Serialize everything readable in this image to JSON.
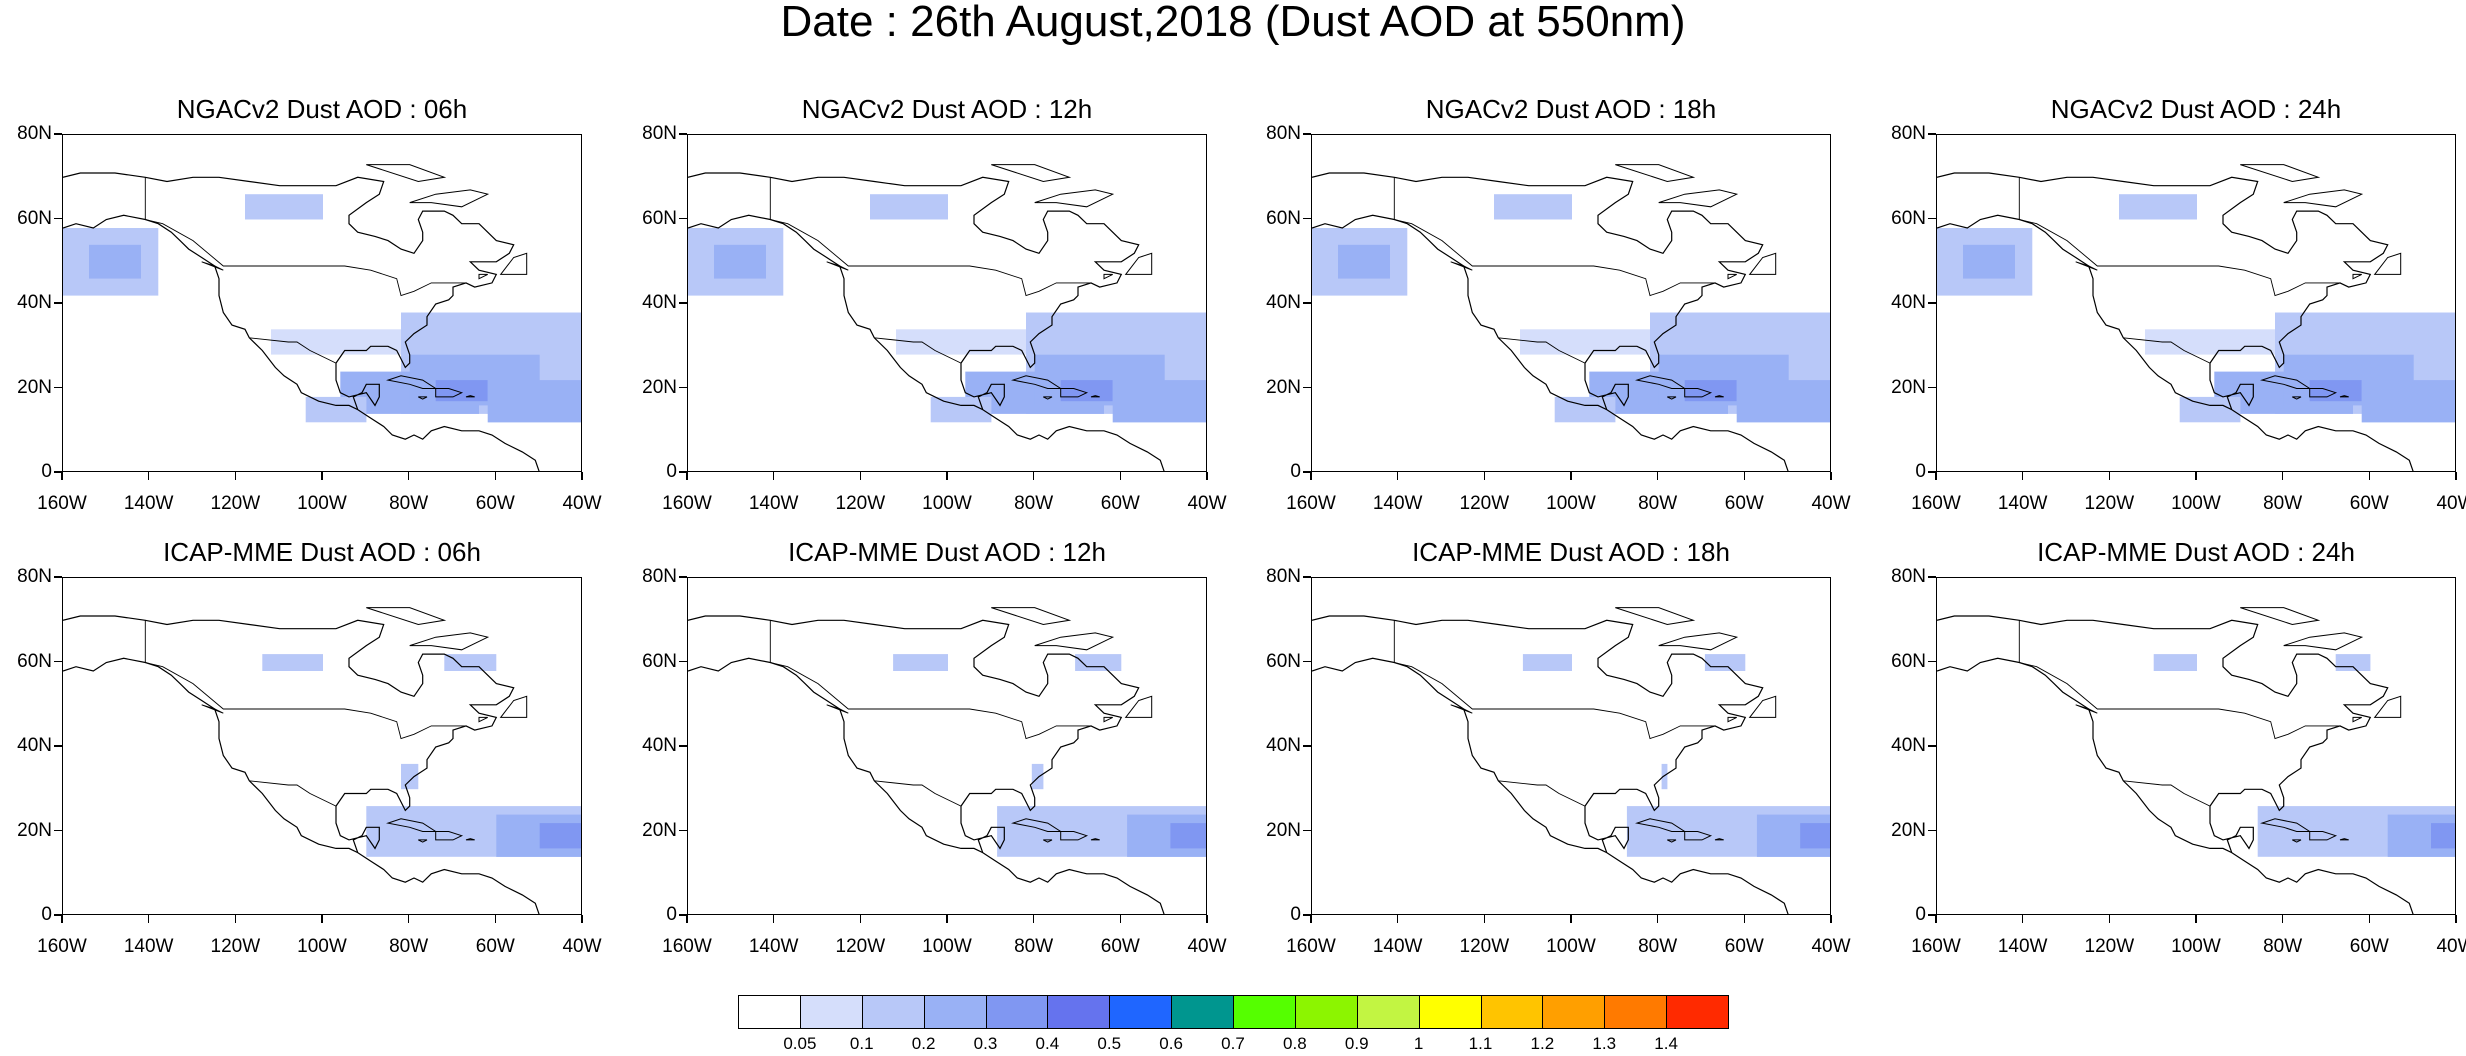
{
  "title": "Date : 26th August,2018 (Dust AOD at 550nm)",
  "panels": [
    {
      "title": "NGACv2 Dust AOD : 06h",
      "model": "NGACv2",
      "lead": "06h"
    },
    {
      "title": "NGACv2 Dust AOD : 12h",
      "model": "NGACv2",
      "lead": "12h"
    },
    {
      "title": "NGACv2 Dust AOD : 18h",
      "model": "NGACv2",
      "lead": "18h"
    },
    {
      "title": "NGACv2 Dust AOD : 24h",
      "model": "NGACv2",
      "lead": "24h"
    },
    {
      "title": "ICAP-MME Dust AOD : 06h",
      "model": "ICAP-MME",
      "lead": "06h"
    },
    {
      "title": "ICAP-MME Dust AOD : 12h",
      "model": "ICAP-MME",
      "lead": "12h"
    },
    {
      "title": "ICAP-MME Dust AOD : 18h",
      "model": "ICAP-MME",
      "lead": "18h"
    },
    {
      "title": "ICAP-MME Dust AOD : 24h",
      "model": "ICAP-MME",
      "lead": "24h"
    }
  ],
  "map": {
    "lon_range": [
      -160,
      -40
    ],
    "lat_range": [
      0,
      80
    ],
    "lat_ticks": [
      "0",
      "20N",
      "40N",
      "60N",
      "80N"
    ],
    "lon_ticks": [
      "160W",
      "140W",
      "120W",
      "100W",
      "80W",
      "60W",
      "40W"
    ]
  },
  "colorbar": {
    "colors": [
      "#ffffff",
      "#d5defb",
      "#b8c8f8",
      "#99b1f5",
      "#8097f2",
      "#6573ee",
      "#1f66ff",
      "#00968f",
      "#55ff00",
      "#8cf500",
      "#c2f542",
      "#ffff00",
      "#ffc400",
      "#ff9f00",
      "#ff7a00",
      "#ff2a00"
    ],
    "labels": [
      "0.05",
      "0.1",
      "0.2",
      "0.3",
      "0.4",
      "0.5",
      "0.6",
      "0.7",
      "0.8",
      "0.9",
      "1",
      "1.1",
      "1.2",
      "1.3",
      "1.4"
    ]
  }
}
